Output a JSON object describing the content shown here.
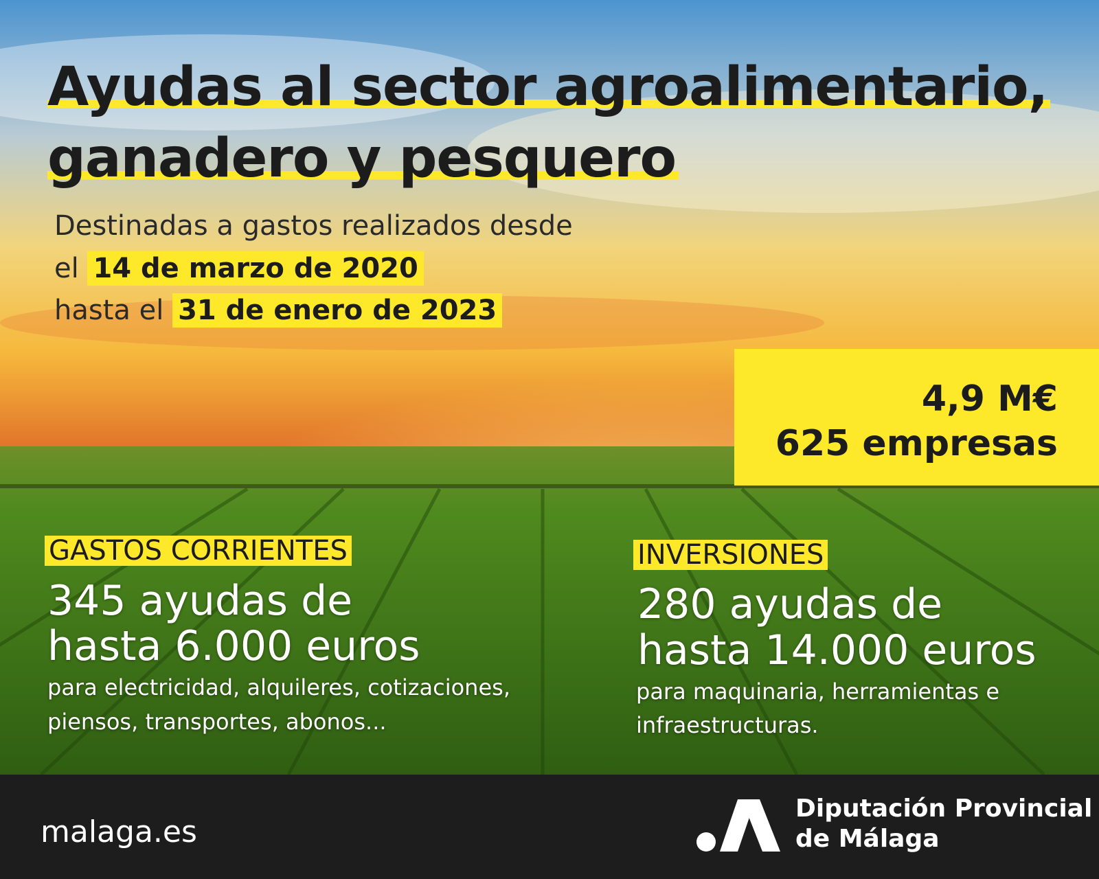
{
  "header": {
    "title_lines": [
      "Ayudas al sector agroalimentario,",
      "ganadero y pesquero"
    ],
    "subtitle": {
      "line1": "Destinadas a gastos realizados desde",
      "line2": {
        "prefix": "el",
        "highlight": "14 de marzo de 2020"
      },
      "line3": {
        "prefix": "hasta el",
        "highlight": "31 de enero de 2023"
      }
    }
  },
  "totals": {
    "amount": "4,9 M€",
    "companies": "625 empresas"
  },
  "sections": [
    {
      "label": "GASTOS CORRIENTES",
      "headline": [
        "345 ayudas de",
        "hasta 6.000 euros"
      ],
      "detail": [
        "para electricidad, alquileres, cotizaciones,",
        "piensos, transportes, abonos..."
      ]
    },
    {
      "label": "INVERSIONES",
      "headline": [
        "280 ayudas de",
        "hasta 14.000 euros"
      ],
      "detail": [
        "para maquinaria, herramientas e",
        "infraestructuras."
      ]
    }
  ],
  "footer": {
    "site": "malaga.es",
    "org_lines": [
      "Diputación Provincial",
      "de Málaga"
    ]
  }
}
